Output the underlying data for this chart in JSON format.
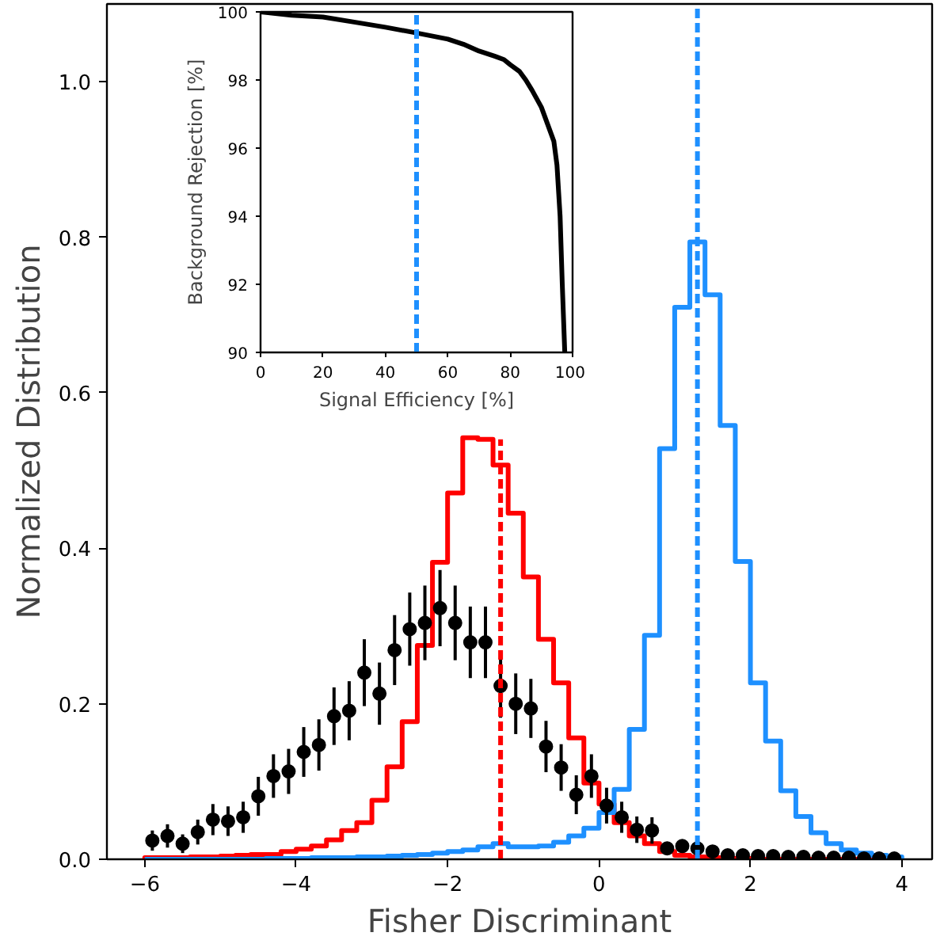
{
  "chart_data": [
    {
      "type": "histogram",
      "xlabel": "Fisher Discriminant",
      "ylabel": "Normalized Distribution",
      "bins": [
        -6.0,
        -5.8,
        -5.6,
        -5.4,
        -5.2,
        -5.0,
        -4.8,
        -4.6,
        -4.4,
        -4.2,
        -4.0,
        -3.8,
        -3.6,
        -3.4,
        -3.2,
        -3.0,
        -2.8,
        -2.6,
        -2.4,
        -2.2,
        -2.0,
        -1.8,
        -1.6,
        -1.4,
        -1.2,
        -1.0,
        -0.8,
        -0.6,
        -0.4,
        -0.2,
        0.0,
        0.2,
        0.4,
        0.6,
        0.8,
        1.0,
        1.2,
        1.4,
        1.6,
        1.8,
        2.0,
        2.2,
        2.4,
        2.6,
        2.8,
        3.0,
        3.2,
        3.4,
        3.6,
        3.8,
        4.0
      ],
      "xlim": [
        -6.5,
        4.4
      ],
      "ylim": [
        0,
        1.1
      ],
      "xticks": [
        {
          "value": -6,
          "label": "−6"
        },
        {
          "value": -4,
          "label": "−4"
        },
        {
          "value": -2,
          "label": "−2"
        },
        0,
        2,
        4
      ],
      "yticks": [
        {
          "value": 0,
          "label": "0.0"
        },
        0.2,
        0.4,
        0.6,
        0.8,
        {
          "value": 1,
          "label": "1.0"
        }
      ],
      "series": [
        {
          "type": "histogram",
          "color": "#ff0000",
          "values": [
            0.002,
            0.002,
            0.002,
            0.003,
            0.003,
            0.004,
            0.005,
            0.006,
            0.006,
            0.01,
            0.013,
            0.017,
            0.025,
            0.037,
            0.047,
            0.076,
            0.119,
            0.177,
            0.275,
            0.382,
            0.471,
            0.542,
            0.54,
            0.507,
            0.445,
            0.363,
            0.283,
            0.227,
            0.156,
            0.098,
            0.071,
            0.047,
            0.03,
            0.02,
            0.01,
            0.005,
            0.003,
            0.002,
            0.001,
            0.001,
            0,
            0,
            0,
            0,
            0,
            0,
            0,
            0,
            0,
            0
          ]
        },
        {
          "type": "histogram",
          "color": "#1e90ff",
          "values": [
            0,
            0,
            0,
            0,
            0,
            0,
            0,
            0,
            0.001,
            0.001,
            0.001,
            0.002,
            0.002,
            0.002,
            0.003,
            0.003,
            0.004,
            0.005,
            0.006,
            0.008,
            0.01,
            0.012,
            0.016,
            0.02,
            0.016,
            0.016,
            0.017,
            0.022,
            0.03,
            0.04,
            0.06,
            0.09,
            0.167,
            0.288,
            0.528,
            0.71,
            0.794,
            0.726,
            0.558,
            0.383,
            0.227,
            0.152,
            0.088,
            0.055,
            0.034,
            0.02,
            0.012,
            0.008,
            0.005,
            0.003
          ]
        },
        {
          "type": "scatter",
          "color": "#000000",
          "marker": "circle",
          "x": [
            -5.9,
            -5.7,
            -5.5,
            -5.3,
            -5.1,
            -4.9,
            -4.7,
            -4.5,
            -4.3,
            -4.1,
            -3.9,
            -3.7,
            -3.5,
            -3.3,
            -3.1,
            -2.9,
            -2.7,
            -2.5,
            -2.3,
            -2.1,
            -1.9,
            -1.7,
            -1.5,
            -1.3,
            -1.1,
            -0.9,
            -0.7,
            -0.5,
            -0.3,
            -0.1,
            0.1,
            0.3,
            0.5,
            0.7,
            0.9,
            1.1,
            1.3,
            1.5,
            1.7,
            1.9,
            2.1,
            2.3,
            2.5,
            2.7,
            2.9,
            3.1,
            3.3,
            3.5,
            3.7,
            3.9
          ],
          "values": [
            0.024,
            0.03,
            0.02,
            0.035,
            0.051,
            0.049,
            0.054,
            0.081,
            0.107,
            0.113,
            0.138,
            0.147,
            0.184,
            0.191,
            0.24,
            0.213,
            0.269,
            0.296,
            0.304,
            0.323,
            0.304,
            0.279,
            0.279,
            0.223,
            0.2,
            0.194,
            0.145,
            0.118,
            0.083,
            0.107,
            0.069,
            0.054,
            0.038,
            0.037,
            0.014,
            0.017,
            0.014,
            0.01,
            0.005,
            0.005,
            0.004,
            0.004,
            0.003,
            0.003,
            0.002,
            0.002,
            0.002,
            0.001,
            0.001,
            0.001
          ],
          "errors": [
            0.013,
            0.015,
            0.012,
            0.016,
            0.02,
            0.019,
            0.02,
            0.025,
            0.028,
            0.029,
            0.032,
            0.033,
            0.037,
            0.038,
            0.043,
            0.04,
            0.045,
            0.047,
            0.048,
            0.049,
            0.048,
            0.046,
            0.046,
            0.041,
            0.039,
            0.038,
            0.033,
            0.03,
            0.025,
            0.028,
            0.023,
            0.02,
            0.017,
            0.017,
            null,
            null,
            null,
            null,
            null,
            null,
            null,
            null,
            null,
            null,
            null,
            null,
            null,
            null,
            null,
            null
          ]
        },
        {
          "type": "line",
          "color": "#ff0000",
          "line_style": "dashed",
          "x": [
            -1.3,
            -1.3
          ],
          "values": [
            0,
            0.54
          ]
        }
      ],
      "ref_lines": [
        {
          "axis": "x",
          "value": 1.3,
          "color": "#1e90ff",
          "line_style": "dashed"
        }
      ]
    },
    {
      "type": "line",
      "xlabel": "Signal Efficiency [%]",
      "ylabel": "Background Rejection [%]",
      "xlim": [
        0,
        100
      ],
      "ylim": [
        90,
        100
      ],
      "xticks": [
        0,
        20,
        40,
        60,
        80,
        100
      ],
      "yticks": [
        90,
        92,
        94,
        96,
        98,
        100
      ],
      "series": [
        {
          "color": "#000000",
          "x": [
            0,
            10,
            20,
            30,
            40,
            50,
            60,
            65,
            70,
            75,
            78,
            80,
            83,
            85,
            87,
            90,
            92,
            94,
            95,
            96,
            96.7,
            97.5
          ],
          "values": [
            100,
            99.9,
            99.85,
            99.7,
            99.55,
            99.38,
            99.2,
            99.05,
            98.85,
            98.7,
            98.6,
            98.45,
            98.25,
            98.0,
            97.7,
            97.2,
            96.7,
            96.2,
            95.5,
            94.0,
            92.0,
            90
          ]
        }
      ],
      "ref_lines": [
        {
          "axis": "x",
          "value": 50,
          "color": "#1e90ff",
          "line_style": "dashed"
        }
      ]
    }
  ]
}
